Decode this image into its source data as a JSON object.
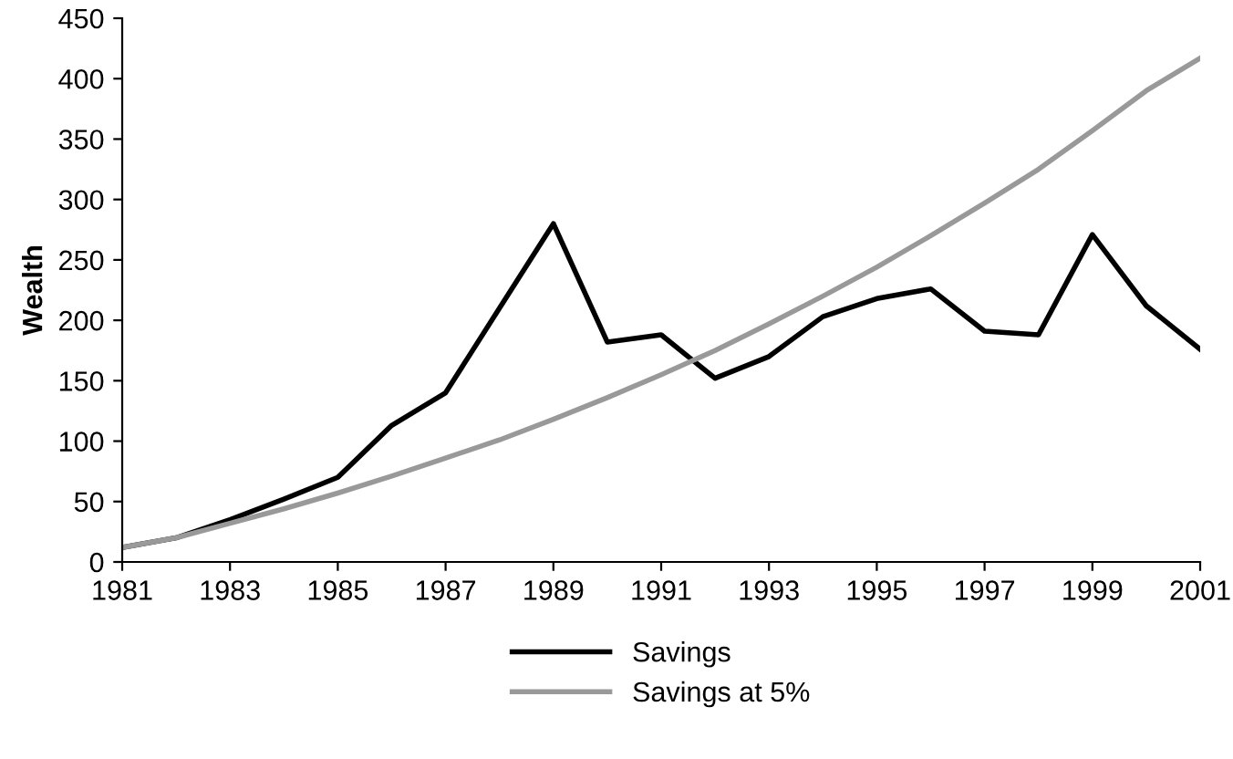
{
  "chart_data": {
    "type": "line",
    "ylabel": "Wealth",
    "x": [
      1981,
      1982,
      1983,
      1984,
      1985,
      1986,
      1987,
      1988,
      1989,
      1990,
      1991,
      1992,
      1993,
      1994,
      1995,
      1996,
      1997,
      1998,
      1999,
      2000,
      2001
    ],
    "series": [
      {
        "name": "Savings",
        "color": "#000000",
        "values": [
          12,
          20,
          35,
          52,
          70,
          113,
          140,
          210,
          280,
          182,
          188,
          152,
          170,
          203,
          218,
          226,
          191,
          188,
          271,
          212,
          176
        ]
      },
      {
        "name": "Savings at 5%",
        "color": "#999999",
        "values": [
          12,
          20,
          32,
          44,
          57,
          71,
          86,
          101,
          118,
          136,
          155,
          175,
          197,
          220,
          244,
          270,
          297,
          325,
          357,
          390,
          417
        ]
      }
    ],
    "xlim": [
      1981,
      2001
    ],
    "xticks": [
      1981,
      1983,
      1985,
      1987,
      1989,
      1991,
      1993,
      1995,
      1997,
      1999,
      2001
    ],
    "ylim": [
      0,
      450
    ],
    "yticks": [
      0,
      50,
      100,
      150,
      200,
      250,
      300,
      350,
      400,
      450
    ],
    "grid": false,
    "legend": "bottom",
    "marker": "none",
    "line_style": "solid"
  }
}
